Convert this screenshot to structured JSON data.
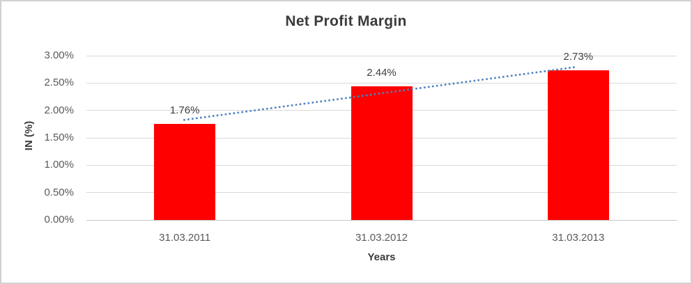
{
  "chart_data": {
    "type": "bar",
    "title": "Net Profit Margin",
    "xlabel": "Years",
    "ylabel": "IN (%)",
    "categories": [
      "31.03.2011",
      "31.03.2012",
      "31.03.2013"
    ],
    "values": [
      1.76,
      2.44,
      2.73
    ],
    "data_labels": [
      "1.76%",
      "2.44%",
      "2.73%"
    ],
    "ylim": [
      0,
      3.0
    ],
    "y_tick_step": 0.5,
    "y_tick_labels_top_to_bottom": [
      "3.00%",
      "2.50%",
      "2.00%",
      "1.50%",
      "1.00%",
      "0.50%",
      "0.00%"
    ],
    "grid": true,
    "legend": "none",
    "bar_color": "#ff0000",
    "trendline": {
      "type": "linear",
      "style": "dotted",
      "color": "#4e81bd",
      "start_value": 1.825,
      "end_value": 2.795
    }
  }
}
